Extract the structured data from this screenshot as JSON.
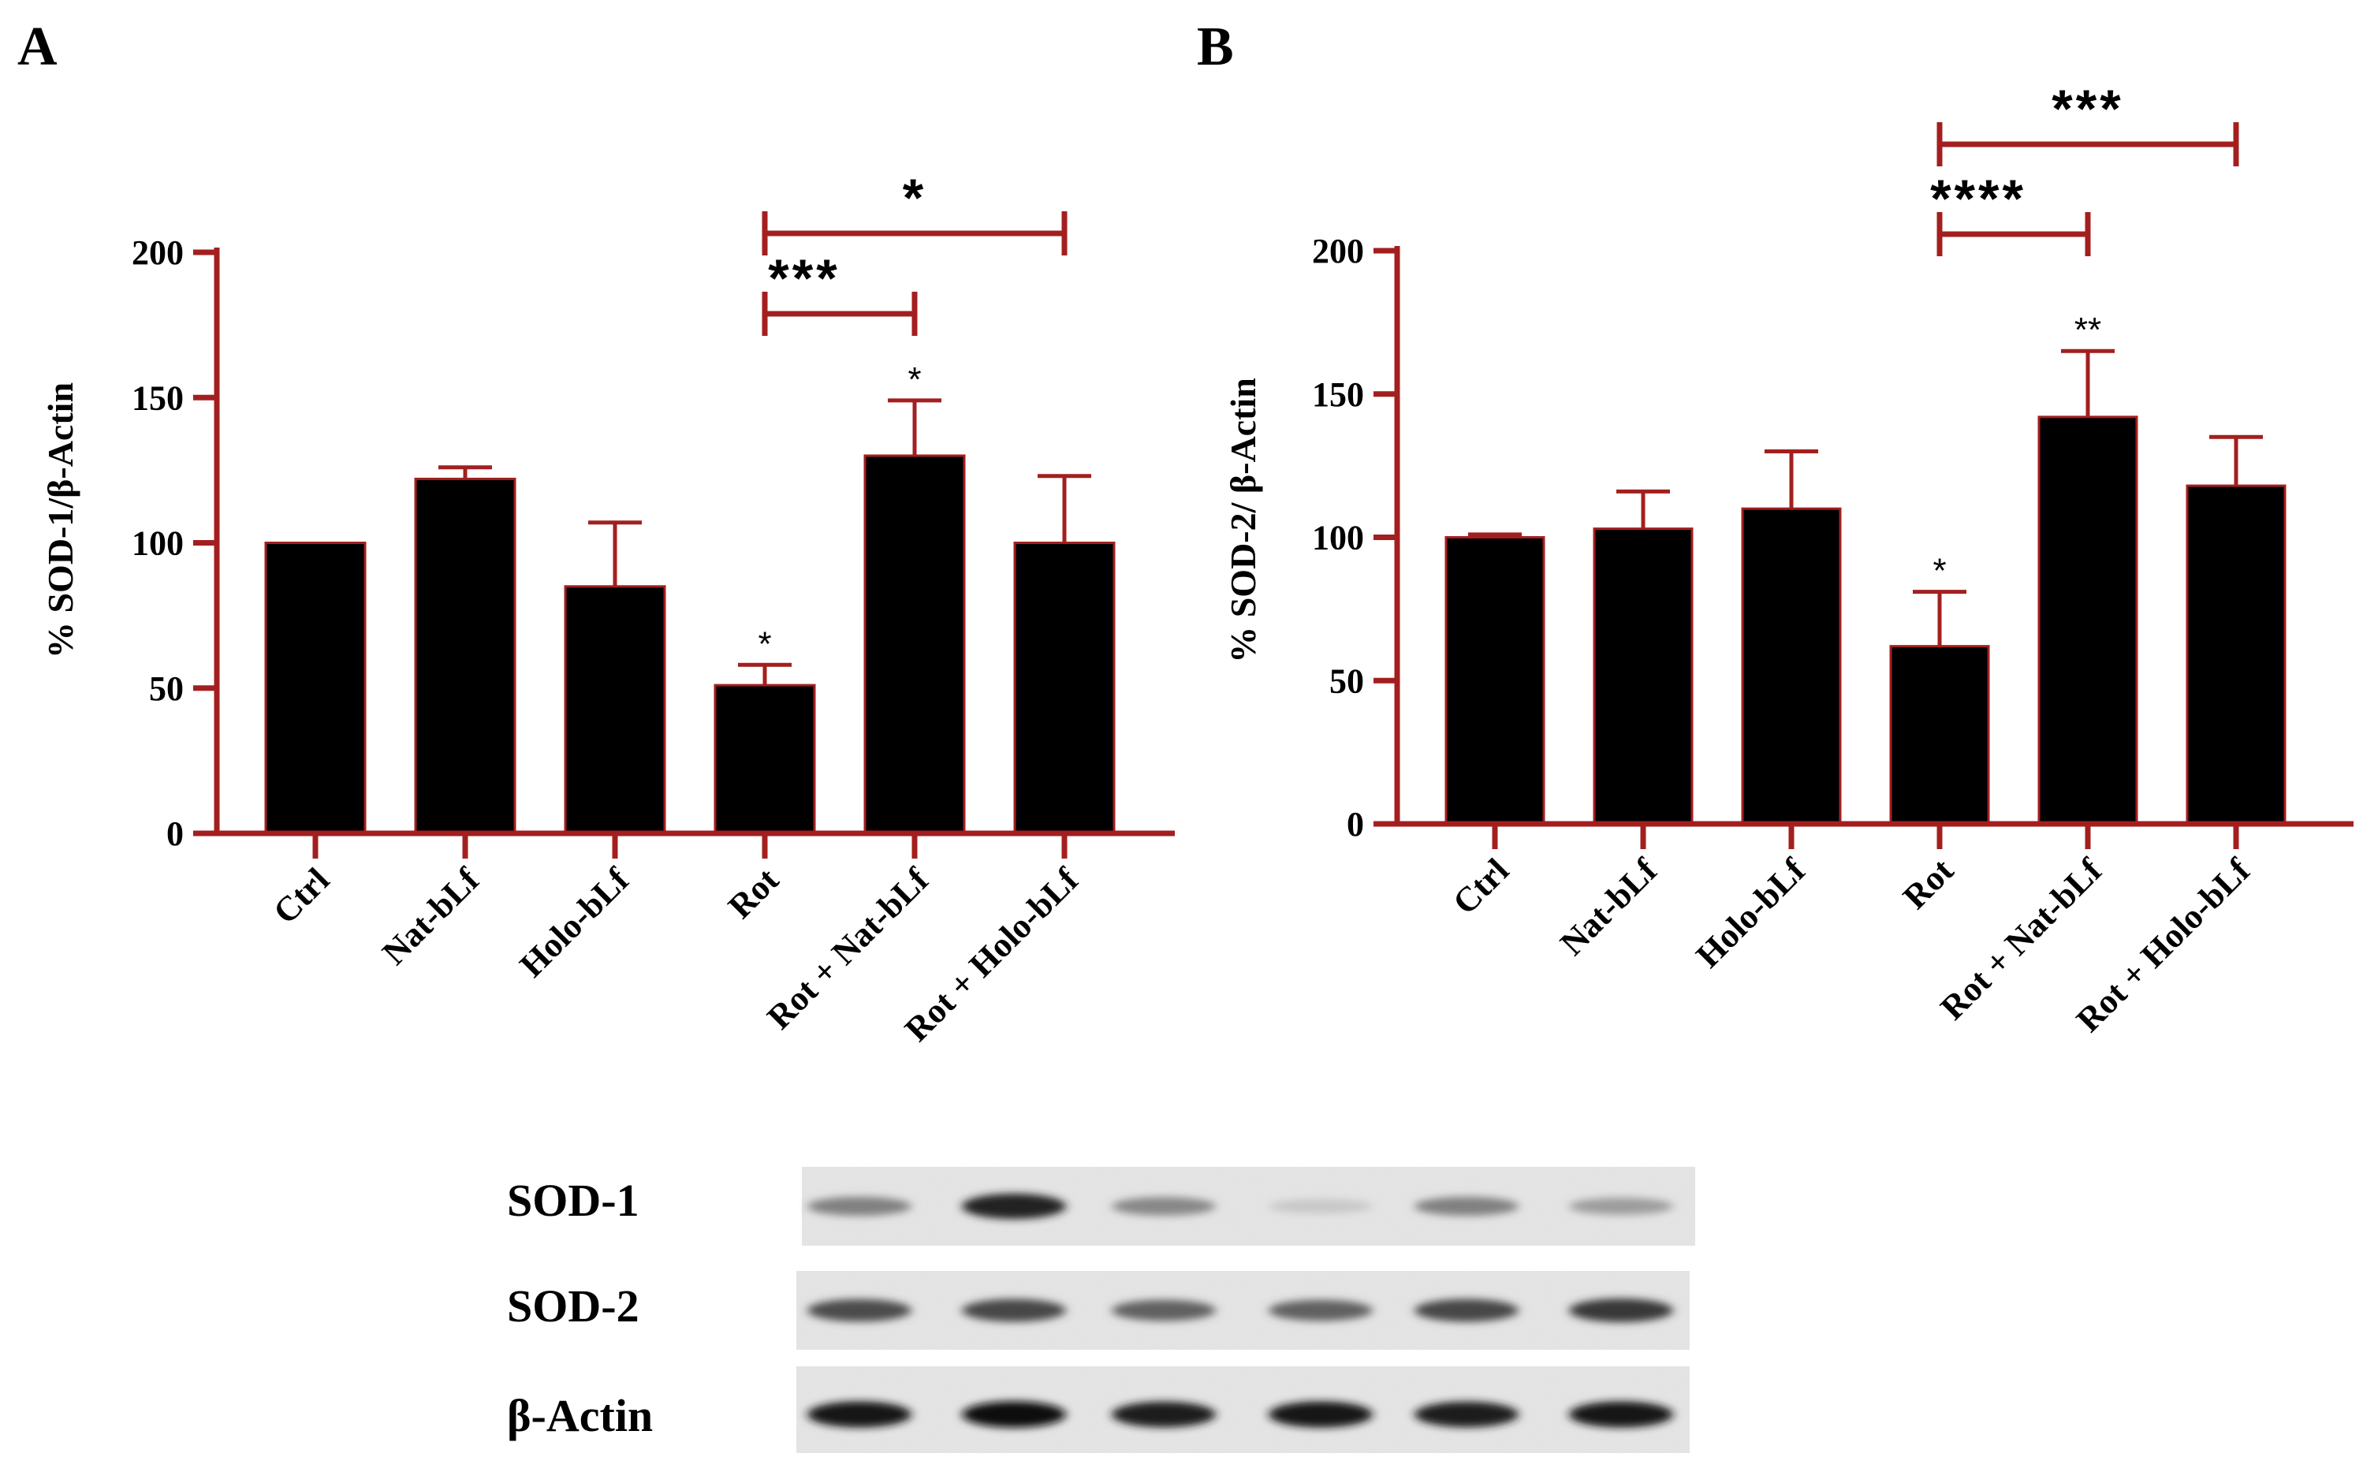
{
  "colors": {
    "axis": "#a31f1f",
    "bar": "#000000",
    "error": "#a31f1f",
    "text": "#000000"
  },
  "chart_data": [
    {
      "panel": "A",
      "type": "bar",
      "title": "",
      "ylabel": "% SOD-1/β-Actin",
      "xlabel": "",
      "ylim": [
        0,
        200
      ],
      "yticks": [
        0,
        50,
        100,
        150,
        200
      ],
      "categories": [
        "Ctrl",
        "Nat-bLf",
        "Holo-bLf",
        "Rot",
        "Rot + Nat-bLf",
        "Rot + Holo-bLf"
      ],
      "values": [
        100,
        122,
        85,
        51,
        130,
        100
      ],
      "errors": [
        0,
        4,
        22,
        7,
        19,
        23
      ],
      "bar_annotations": [
        "",
        "",
        "",
        "*",
        "*",
        ""
      ],
      "significance": [
        {
          "from": 3,
          "to": 4,
          "label": "***"
        },
        {
          "from": 3,
          "to": 5,
          "label": "*"
        }
      ]
    },
    {
      "panel": "B",
      "type": "bar",
      "title": "",
      "ylabel": "% SOD-2/ β-Actin",
      "xlabel": "",
      "ylim": [
        0,
        200
      ],
      "yticks": [
        0,
        50,
        100,
        150,
        200
      ],
      "categories": [
        "Ctrl",
        "Nat-bLf",
        "Holo-bLf",
        "Rot",
        "Rot + Nat-bLf",
        "Rot + Holo-bLf"
      ],
      "values": [
        100,
        103,
        110,
        62,
        142,
        118
      ],
      "errors": [
        1,
        13,
        20,
        19,
        23,
        17
      ],
      "bar_annotations": [
        "",
        "",
        "",
        "*",
        "**",
        ""
      ],
      "significance": [
        {
          "from": 3,
          "to": 4,
          "label": "****"
        },
        {
          "from": 3,
          "to": 5,
          "label": "***"
        }
      ]
    }
  ],
  "blot": {
    "rows": [
      {
        "label": "SOD-1",
        "intensities": [
          0.45,
          0.9,
          0.42,
          0.12,
          0.45,
          0.32
        ]
      },
      {
        "label": "SOD-2",
        "intensities": [
          0.7,
          0.72,
          0.6,
          0.6,
          0.72,
          0.78
        ]
      },
      {
        "label": "β-Actin",
        "intensities": [
          0.95,
          0.97,
          0.92,
          0.95,
          0.92,
          0.95
        ]
      }
    ]
  }
}
